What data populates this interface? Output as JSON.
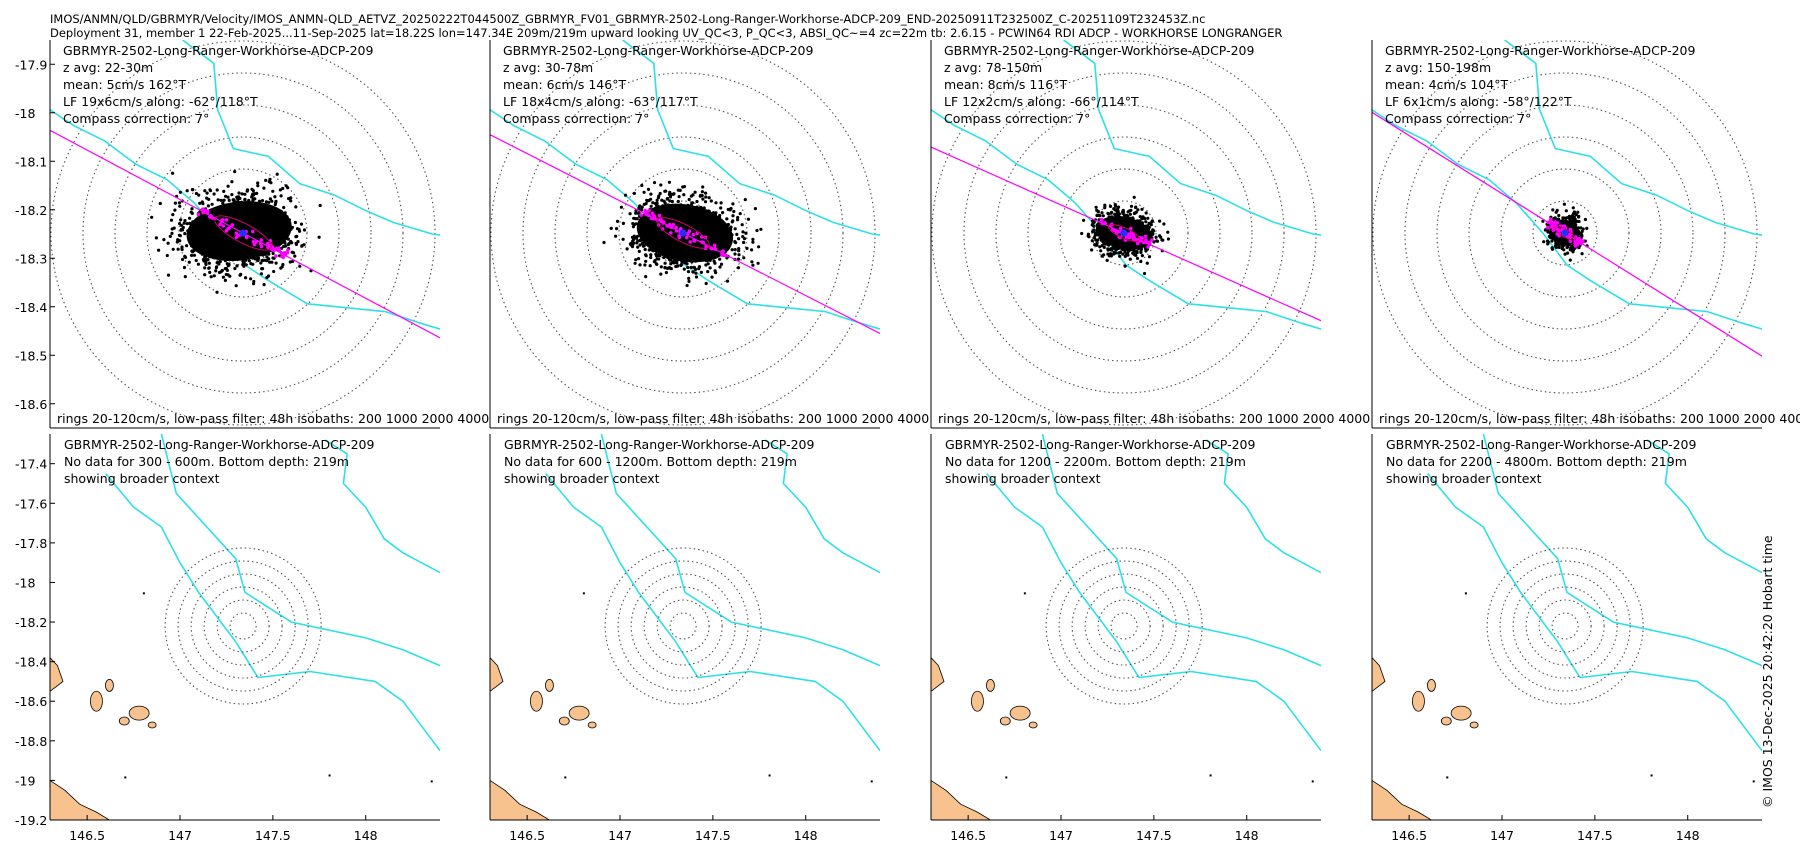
{
  "header": {
    "line1": "IMOS/ANMN/QLD/GBRMYR/Velocity/IMOS_ANMN-QLD_AETVZ_20250222T044500Z_GBRMYR_FV01_GBRMYR-2502-Long-Ranger-Workhorse-ADCP-209_END-20250911T232500Z_C-20251109T232453Z.nc",
    "line2": "Deployment 31, member 1 22-Feb-2025...11-Sep-2025 lat=18.22S lon=147.34E 209m/219m upward looking UV_QC<3, P_QC<3, ABSI_QC~=4 zc=22m tb: 2.6.15 - PCWIN64 RDI ADCP - WORKHORSE LONGRANGER"
  },
  "footer_side": "© IMOS 13-Dec-2025 20:42:20 Hobart time",
  "colors": {
    "isobath": "#2de0e6",
    "axis_line": "#ff00ff",
    "land": "#f7c28e",
    "scatter": "#000000",
    "lowpass": "#ff00ff",
    "mean": "#2030ff"
  },
  "chart_data": [
    {
      "type": "scatter",
      "panel": "top",
      "title": "GBRMYR-2502-Long-Ranger-Workhorse-ADCP-209",
      "zavg": "z avg: 22-30m",
      "mean": "mean: 5cm/s 162°T",
      "lf": "LF 19x6cm/s along: -62°/118°T",
      "compass": "Compass correction: 7°",
      "footer": "rings 20-120cm/s, low-pass filter: 48h isobaths: 200 1000 2000 4000",
      "ylim": [
        -18.65,
        -17.85
      ],
      "yticks": [
        -17.9,
        -18,
        -18.1,
        -18.2,
        -18.3,
        -18.4,
        -18.5,
        -18.6
      ],
      "ytick_labels": [
        "-17.9",
        "-18",
        "-18.1",
        "-18.2",
        "-18.3",
        "-18.4",
        "-18.5",
        "-18.6"
      ],
      "cloud": {
        "rx": 0.5,
        "ry": 0.155,
        "angle": -7,
        "dx": -0.02,
        "dy": -0.01,
        "n": 1100
      },
      "along_deg": 118
    },
    {
      "type": "scatter",
      "panel": "top",
      "title": "GBRMYR-2502-Long-Ranger-Workhorse-ADCP-209",
      "zavg": "z avg: 30-78m",
      "mean": "mean: 6cm/s 146°T",
      "lf": "LF 18x4cm/s along: -63°/117°T",
      "compass": "Compass correction: 7°",
      "footer": "rings 20-120cm/s, low-pass filter: 48h isobaths: 200 1000 2000 4000",
      "cloud": {
        "rx": 0.46,
        "ry": 0.15,
        "angle": 10,
        "dx": 0.01,
        "dy": 0.0,
        "n": 1100
      },
      "along_deg": 117
    },
    {
      "type": "scatter",
      "panel": "top",
      "title": "GBRMYR-2502-Long-Ranger-Workhorse-ADCP-209",
      "zavg": "z avg: 78-150m",
      "mean": "mean: 8cm/s 116°T",
      "lf": "LF 12x2cm/s along: -66°/114°T",
      "compass": "Compass correction: 7°",
      "footer": "rings 20-120cm/s, low-pass filter: 48h isobaths: 200 1000 2000 4000",
      "cloud": {
        "rx": 0.27,
        "ry": 0.085,
        "angle": 12,
        "dx": 0.0,
        "dy": 0.0,
        "n": 800
      },
      "along_deg": 114
    },
    {
      "type": "scatter",
      "panel": "top",
      "title": "GBRMYR-2502-Long-Ranger-Workhorse-ADCP-209",
      "zavg": "z avg: 150-198m",
      "mean": "mean: 4cm/s 104°T",
      "lf": "LF 6x1cm/s along: -58°/122°T",
      "compass": "Compass correction: 7°",
      "footer": "rings 20-120cm/s, low-pass filter: 48h isobaths: 200 1000 2000 4000",
      "cloud": {
        "rx": 0.14,
        "ry": 0.065,
        "angle": 14,
        "dx": 0.0,
        "dy": 0.0,
        "n": 500
      },
      "along_deg": 122
    },
    {
      "type": "map",
      "panel": "bottom",
      "title": "GBRMYR-2502-Long-Ranger-Workhorse-ADCP-209",
      "nodata": "No data for 300 - 600m. Bottom depth: 219m",
      "context": "showing broader context",
      "ylim": [
        -19.2,
        -17.25
      ],
      "yticks": [
        -17.4,
        -17.6,
        -17.8,
        -18,
        -18.2,
        -18.4,
        -18.6,
        -18.8,
        -19,
        -19.2
      ],
      "ytick_labels": [
        "-17.4",
        "-17.6",
        "-17.8",
        "-18",
        "-18.2",
        "-18.4",
        "-18.6",
        "-18.8",
        "-19",
        "-19.2"
      ],
      "xlim": [
        146.3,
        148.4
      ],
      "xticks": [
        146.5,
        147,
        147.5,
        148
      ],
      "xtick_labels": [
        "146.5",
        "147",
        "147.5",
        "148"
      ]
    },
    {
      "type": "map",
      "panel": "bottom",
      "title": "GBRMYR-2502-Long-Ranger-Workhorse-ADCP-209",
      "nodata": "No data for 600 - 1200m. Bottom depth: 219m",
      "context": "showing broader context",
      "xtick_labels": [
        "146.5",
        "147",
        "147.5",
        "148"
      ]
    },
    {
      "type": "map",
      "panel": "bottom",
      "title": "GBRMYR-2502-Long-Ranger-Workhorse-ADCP-209",
      "nodata": "No data for 1200 - 2200m. Bottom depth: 219m",
      "context": "showing broader context",
      "xtick_labels": [
        "146.5",
        "147",
        "147.5",
        "148"
      ]
    },
    {
      "type": "map",
      "panel": "bottom",
      "title": "GBRMYR-2502-Long-Ranger-Workhorse-ADCP-209",
      "nodata": "No data for 2200 - 4800m. Bottom depth: 219m",
      "context": "showing broader context",
      "xtick_labels": [
        "146.5",
        "147",
        "147.5",
        "148"
      ]
    }
  ]
}
